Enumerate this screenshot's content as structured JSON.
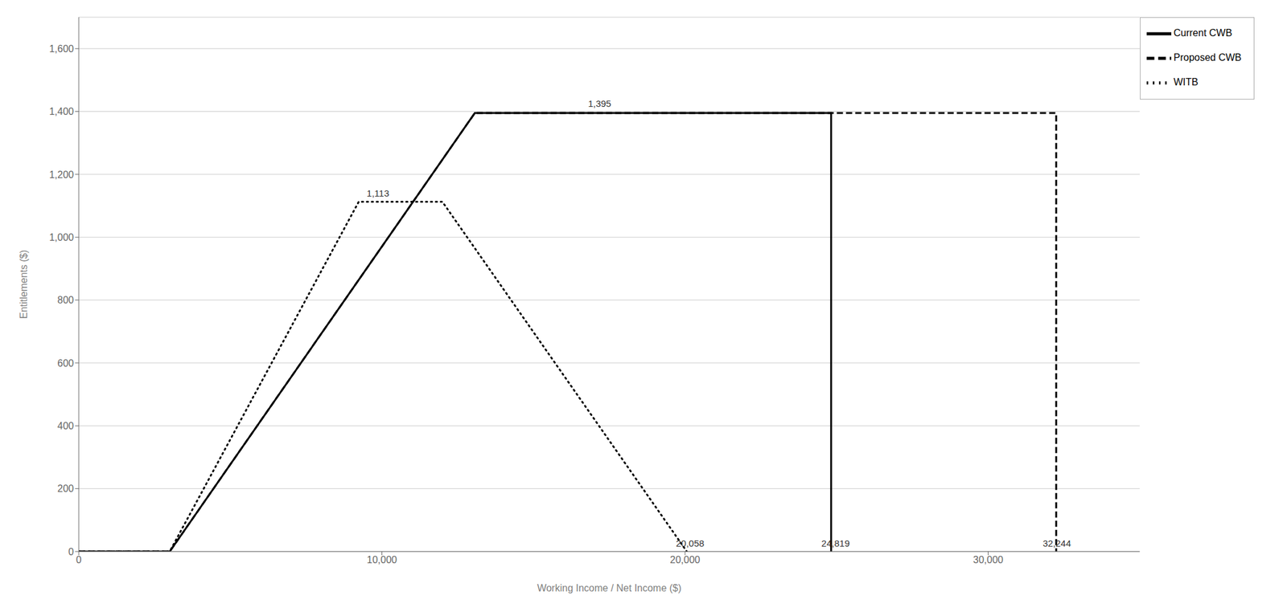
{
  "chart_data": {
    "type": "line",
    "xlabel": "Working Income / Net Income ($)",
    "ylabel": "Entitlements ($)",
    "xlim": [
      0,
      35000
    ],
    "ylim": [
      0,
      1700
    ],
    "xticks": [
      0,
      {
        "value": 10000,
        "label": "10,000"
      },
      {
        "value": 20000,
        "label": "20,000"
      },
      {
        "value": 30000,
        "label": "30,000"
      }
    ],
    "yticks": [
      0,
      200,
      400,
      600,
      800,
      {
        "value": 1000,
        "label": "1,000"
      },
      {
        "value": 1200,
        "label": "1,200"
      },
      {
        "value": 1400,
        "label": "1,400"
      },
      {
        "value": 1600,
        "label": "1,600"
      }
    ],
    "grid": true,
    "legend": "upper right",
    "series": [
      {
        "name": "WITB",
        "color": "#000000",
        "line_style": "dotted",
        "x": [
          0,
          3000,
          9236,
          11993,
          20058,
          20058
        ],
        "values": [
          0,
          0,
          1113,
          1113,
          0,
          0
        ]
      },
      {
        "name": "Current CWB",
        "color": "#000000",
        "line_style": "solid",
        "x": [
          0,
          3000,
          13064,
          24819,
          24819
        ],
        "values": [
          0,
          0,
          1395,
          1395,
          0
        ]
      },
      {
        "name": "Proposed CWB",
        "color": "#000000",
        "line_style": "dashed",
        "x": [
          0,
          3000,
          13064,
          32244,
          32244
        ],
        "values": [
          0,
          0,
          1395,
          1395,
          0
        ]
      }
    ],
    "annotations": [
      {
        "text": "1,113",
        "x": 9500,
        "y": 1130
      },
      {
        "text": "1,395",
        "x": 16800,
        "y": 1415
      },
      {
        "text": "20,058",
        "x": 19700,
        "y": 15
      },
      {
        "text": "24,819",
        "x": 24500,
        "y": 15
      },
      {
        "text": "32,244",
        "x": 31800,
        "y": 15
      }
    ]
  }
}
